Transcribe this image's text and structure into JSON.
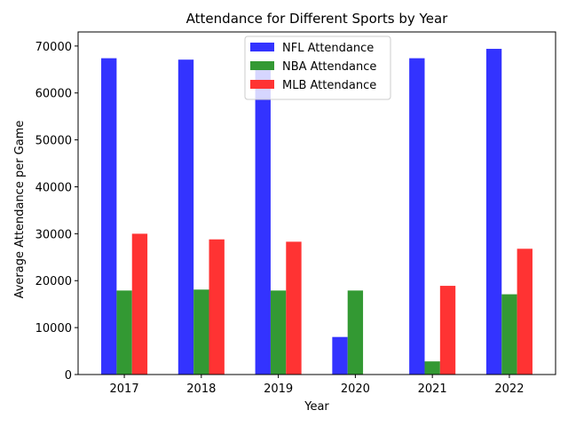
{
  "chart_data": {
    "type": "bar",
    "title": "Attendance for Different Sports by Year",
    "xlabel": "Year",
    "ylabel": "Average Attendance per Game",
    "categories": [
      "2017",
      "2018",
      "2019",
      "2020",
      "2021",
      "2022"
    ],
    "series": [
      {
        "name": "NFL Attendance",
        "color": "#3333ff",
        "values": [
          67400,
          67100,
          66700,
          8000,
          67400,
          69400
        ]
      },
      {
        "name": "NBA Attendance",
        "color": "#339933",
        "values": [
          17900,
          18100,
          17900,
          17900,
          2800,
          17100
        ]
      },
      {
        "name": "MLB Attendance",
        "color": "#ff3333",
        "values": [
          30000,
          28800,
          28300,
          0,
          18900,
          26800
        ]
      }
    ],
    "ylim": [
      0,
      73000
    ],
    "yticks": [
      0,
      10000,
      20000,
      30000,
      40000,
      50000,
      60000,
      70000
    ],
    "ytick_labels": [
      "0",
      "10000",
      "20000",
      "30000",
      "40000",
      "50000",
      "60000",
      "70000"
    ],
    "grid": false,
    "legend_position": "top-center"
  }
}
